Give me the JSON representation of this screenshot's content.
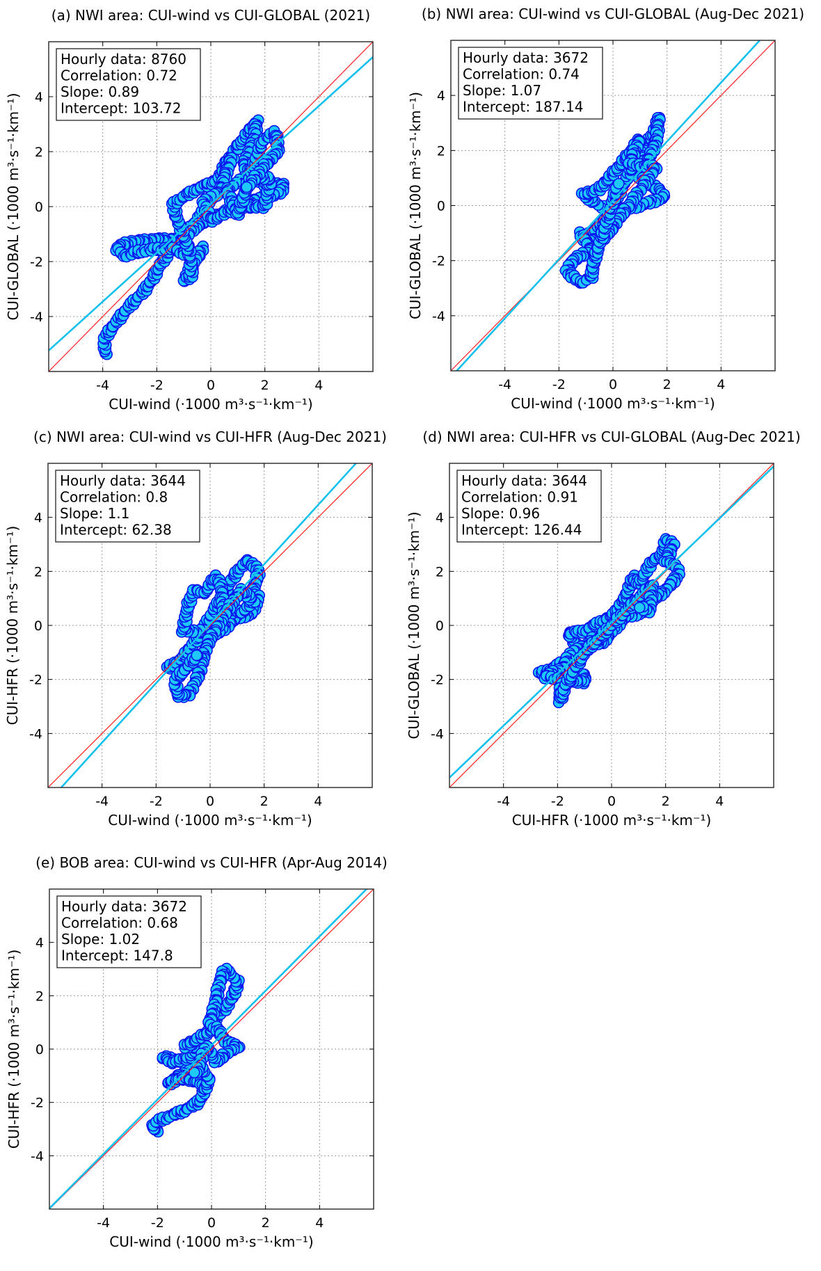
{
  "chart_data": [
    {
      "type": "scatter",
      "title": "(a) NWI area: CUI-wind vs CUI-GLOBAL (2021)",
      "xlabel": "CUI-wind (·1000 m³·s⁻¹·km⁻¹)",
      "ylabel": "CUI-GLOBAL (·1000 m³·s⁻¹·km⁻¹)",
      "xlim": [
        -6,
        6
      ],
      "ylim": [
        -6,
        6
      ],
      "xticks": [
        "-4",
        "-2",
        "0",
        "2",
        "4"
      ],
      "yticks": [
        "4",
        "2",
        "0",
        "-2",
        "-4"
      ],
      "grid": true,
      "stats": [
        "Hourly data: 8760",
        "Correlation: 0.72",
        "Slope: 0.89",
        "Intercept: 103.72"
      ],
      "regression": {
        "slope": 0.89,
        "intercept": 0.10372
      },
      "trajectory": [
        [
          -3.9,
          -5.4
        ],
        [
          -3.95,
          -4.8
        ],
        [
          -3.5,
          -4.2
        ],
        [
          -3,
          -3.6
        ],
        [
          -2.5,
          -3.1
        ],
        [
          -2.2,
          -2.7
        ],
        [
          -1.8,
          -2
        ],
        [
          -1.2,
          -1.2
        ],
        [
          -0.5,
          -0.5
        ],
        [
          0,
          0.3
        ],
        [
          0.5,
          1.5
        ],
        [
          1,
          2.2
        ],
        [
          1.7,
          3.1
        ],
        [
          1.6,
          2.4
        ],
        [
          1.2,
          1.5
        ],
        [
          2,
          0.8
        ],
        [
          2.7,
          0.8
        ],
        [
          2.6,
          0.5
        ],
        [
          1.5,
          0.2
        ],
        [
          0.5,
          -0.2
        ],
        [
          -0.5,
          -0.7
        ],
        [
          -1,
          -1.2
        ],
        [
          -2,
          -1.2
        ],
        [
          -3,
          -1.3
        ],
        [
          -3.5,
          -1.5
        ],
        [
          -3.2,
          -1.8
        ],
        [
          -2.5,
          -1.6
        ],
        [
          -1.5,
          -1.5
        ],
        [
          -0.7,
          -1.8
        ],
        [
          -0.3,
          -1.5
        ],
        [
          -1,
          -2.7
        ],
        [
          -0.7,
          -2.5
        ],
        [
          -0.8,
          -1.6
        ],
        [
          -1.3,
          -0.3
        ],
        [
          -1.4,
          0.1
        ],
        [
          -0.8,
          0.5
        ],
        [
          0.3,
          1.0
        ],
        [
          0.8,
          1.8
        ],
        [
          0.3,
          0.5
        ],
        [
          -0.3,
          0.2
        ],
        [
          0,
          -0.5
        ],
        [
          1,
          0
        ],
        [
          2,
          0
        ],
        [
          2.2,
          1.0
        ],
        [
          1.5,
          1.2
        ],
        [
          0.6,
          0.6
        ],
        [
          1,
          -0.3
        ],
        [
          1.9,
          2.4
        ],
        [
          2.4,
          2.7
        ],
        [
          2.5,
          2.0
        ],
        [
          2.0,
          1.5
        ],
        [
          1.3,
          0.6
        ]
      ]
    },
    {
      "type": "scatter",
      "title": "(b) NWI area: CUI-wind vs CUI-GLOBAL (Aug-Dec 2021)",
      "xlabel": "CUI-wind (·1000 m³·s⁻¹·km⁻¹)",
      "ylabel": "CUI-GLOBAL (·1000 m³·s⁻¹·km⁻¹)",
      "xlim": [
        -6,
        6
      ],
      "ylim": [
        -6,
        6
      ],
      "xticks": [
        "-4",
        "-2",
        "0",
        "2",
        "4"
      ],
      "yticks": [
        "4",
        "2",
        "0",
        "-2",
        "-4"
      ],
      "grid": true,
      "stats": [
        "Hourly data: 3672",
        "Correlation: 0.74",
        "Slope: 1.07",
        "Intercept: 187.14"
      ],
      "regression": {
        "slope": 1.07,
        "intercept": 0.18714
      },
      "trajectory": [
        [
          -1.2,
          -1.2
        ],
        [
          -0.5,
          -0.8
        ],
        [
          0,
          0
        ],
        [
          0.5,
          1
        ],
        [
          1,
          2
        ],
        [
          1.5,
          2.6
        ],
        [
          1.7,
          3.2
        ],
        [
          1.6,
          2.3
        ],
        [
          1.0,
          1.0
        ],
        [
          1.8,
          0.5
        ],
        [
          1.9,
          0.3
        ],
        [
          1.0,
          0
        ],
        [
          0,
          -0.2
        ],
        [
          -0.5,
          0
        ],
        [
          -1.1,
          0.4
        ],
        [
          -0.5,
          0.6
        ],
        [
          0.3,
          1.5
        ],
        [
          1.0,
          2.4
        ],
        [
          0.6,
          1.5
        ],
        [
          1.6,
          1.4
        ],
        [
          1.2,
          0.8
        ],
        [
          0.2,
          -0.5
        ],
        [
          -0.3,
          -1.2
        ],
        [
          -1.0,
          -1.3
        ],
        [
          -1.2,
          -1.0
        ],
        [
          -0.8,
          -1.6
        ],
        [
          -1.5,
          -2.0
        ],
        [
          -1.7,
          -2.4
        ],
        [
          -1.2,
          -2.8
        ],
        [
          -0.8,
          -2.6
        ],
        [
          -0.7,
          -2.0
        ],
        [
          -0.2,
          -0.5
        ],
        [
          0.2,
          0.8
        ]
      ]
    },
    {
      "type": "scatter",
      "title": "(c) NWI area: CUI-wind vs CUI-HFR (Aug-Dec 2021)",
      "xlabel": "CUI-wind (·1000 m³·s⁻¹·km⁻¹)",
      "ylabel": "CUI-HFR (·1000 m³·s⁻¹·km⁻¹)",
      "xlim": [
        -6,
        6
      ],
      "ylim": [
        -6,
        6
      ],
      "xticks": [
        "-4",
        "-2",
        "0",
        "2",
        "4"
      ],
      "yticks": [
        "4",
        "2",
        "0",
        "-2",
        "-4"
      ],
      "grid": true,
      "stats": [
        "Hourly data: 3644",
        "Correlation: 0.8",
        "Slope: 1.1",
        "Intercept: 62.38"
      ],
      "regression": {
        "slope": 1.1,
        "intercept": 0.06238
      },
      "trajectory": [
        [
          -1.6,
          -1.6
        ],
        [
          -1,
          -1.2
        ],
        [
          -0.5,
          -0.5
        ],
        [
          0,
          0.3
        ],
        [
          0.5,
          1.2
        ],
        [
          1,
          2
        ],
        [
          1.4,
          2.4
        ],
        [
          1.8,
          2.0
        ],
        [
          1.6,
          1.3
        ],
        [
          1.8,
          1.0
        ],
        [
          1.5,
          0.4
        ],
        [
          1,
          0.3
        ],
        [
          0.3,
          -0.3
        ],
        [
          -0.5,
          -0.2
        ],
        [
          -1,
          -0.2
        ],
        [
          -0.8,
          0.8
        ],
        [
          -0.6,
          1.3
        ],
        [
          -0.2,
          1.2
        ],
        [
          0.2,
          1.8
        ],
        [
          0.4,
          1.5
        ],
        [
          0.5,
          0.5
        ],
        [
          1.2,
          0.5
        ],
        [
          1.6,
          0.9
        ],
        [
          1.2,
          1.3
        ],
        [
          0.8,
          0.8
        ],
        [
          0,
          -0.5
        ],
        [
          -0.2,
          -1
        ],
        [
          -0.4,
          -1.8
        ],
        [
          -0.8,
          -2.6
        ],
        [
          -1.2,
          -2.6
        ],
        [
          -1.3,
          -2.0
        ],
        [
          -0.8,
          -1.5
        ],
        [
          -0.4,
          -1.0
        ]
      ]
    },
    {
      "type": "scatter",
      "title": "(d) NWI area: CUI-HFR vs CUI-GLOBAL (Aug-Dec 2021)",
      "xlabel": "CUI-HFR (·1000 m³·s⁻¹·km⁻¹)",
      "ylabel": "CUI-GLOBAL (·1000 m³·s⁻¹·km⁻¹)",
      "xlim": [
        -6,
        6
      ],
      "ylim": [
        -6,
        6
      ],
      "xticks": [
        "-4",
        "-2",
        "0",
        "2",
        "4"
      ],
      "yticks": [
        "4",
        "2",
        "0",
        "-2",
        "-4"
      ],
      "grid": true,
      "stats": [
        "Hourly data: 3644",
        "Correlation: 0.91",
        "Slope: 0.96",
        "Intercept: 126.44"
      ],
      "regression": {
        "slope": 0.96,
        "intercept": 0.12644
      },
      "trajectory": [
        [
          -2.7,
          -1.8
        ],
        [
          -2.2,
          -1.6
        ],
        [
          -1.5,
          -1.2
        ],
        [
          -1.2,
          -0.9
        ],
        [
          -1.6,
          -0.3
        ],
        [
          -1.0,
          -0.2
        ],
        [
          -0.3,
          0.2
        ],
        [
          0,
          0.3
        ],
        [
          0.5,
          1
        ],
        [
          0.8,
          1.8
        ],
        [
          1,
          1.5
        ],
        [
          1.5,
          2.4
        ],
        [
          1.9,
          2.6
        ],
        [
          2.0,
          3.2
        ],
        [
          2.3,
          3.0
        ],
        [
          2.0,
          2.4
        ],
        [
          2.4,
          2.2
        ],
        [
          2.5,
          1.9
        ],
        [
          2.0,
          1.3
        ],
        [
          1.6,
          1.0
        ],
        [
          1.2,
          0.5
        ],
        [
          0.5,
          0.3
        ],
        [
          -0.4,
          -0.7
        ],
        [
          -0.6,
          -0.4
        ],
        [
          -1.0,
          -0.8
        ],
        [
          -1.5,
          -1.0
        ],
        [
          -1.8,
          -1.6
        ],
        [
          -2.5,
          -1.9
        ],
        [
          -1.8,
          -2.0
        ],
        [
          -1.0,
          -1.8
        ],
        [
          -1.0,
          -2.1
        ],
        [
          -1.8,
          -2.0
        ],
        [
          -1.9,
          -2.5
        ],
        [
          -1.9,
          -2.8
        ],
        [
          -1.7,
          -2.2
        ],
        [
          -1,
          -1
        ],
        [
          0,
          0
        ],
        [
          1.5,
          1.5
        ],
        [
          1.4,
          0.5
        ],
        [
          1.0,
          0.7
        ]
      ]
    },
    {
      "type": "scatter",
      "title": "(e) BOB area: CUI-wind vs CUI-HFR (Apr-Aug 2014)",
      "xlabel": "CUI-wind (·1000 m³·s⁻¹·km⁻¹)",
      "ylabel": "CUI-HFR (·1000 m³·s⁻¹·km⁻¹)",
      "xlim": [
        -6,
        6
      ],
      "ylim": [
        -6,
        6
      ],
      "xticks": [
        "-4",
        "-2",
        "0",
        "2",
        "4"
      ],
      "yticks": [
        "4",
        "2",
        "0",
        "-2",
        "-4"
      ],
      "grid": true,
      "stats": [
        "Hourly data: 3672",
        "Correlation: 0.68",
        "Slope: 1.02",
        "Intercept: 147.8"
      ],
      "regression": {
        "slope": 1.02,
        "intercept": 0.1478
      },
      "trajectory": [
        [
          -2.0,
          -3.1
        ],
        [
          -2.2,
          -2.9
        ],
        [
          -2.0,
          -2.7
        ],
        [
          -1.5,
          -2.5
        ],
        [
          -1.0,
          -2.3
        ],
        [
          -0.5,
          -2.0
        ],
        [
          -0.3,
          -1.7
        ],
        [
          -0.3,
          -1.2
        ],
        [
          -0.8,
          -0.8
        ],
        [
          -1.2,
          -1.0
        ],
        [
          -1.6,
          -1.3
        ],
        [
          -1.2,
          -1.1
        ],
        [
          -0.5,
          -1.2
        ],
        [
          -0.2,
          -1.5
        ],
        [
          -0.1,
          -1.1
        ],
        [
          -0.5,
          -0.6
        ],
        [
          -1.8,
          -0.3
        ],
        [
          -1.5,
          -0.5
        ],
        [
          -0.8,
          -0.3
        ],
        [
          -0.5,
          0.1
        ],
        [
          -1.0,
          0.1
        ],
        [
          -0.5,
          0.4
        ],
        [
          0,
          0.7
        ],
        [
          0.1,
          1.1
        ],
        [
          0.5,
          1.5
        ],
        [
          0.8,
          2.0
        ],
        [
          1.0,
          2.5
        ],
        [
          0.7,
          2.8
        ],
        [
          0.5,
          3.0
        ],
        [
          0.3,
          2.5
        ],
        [
          0.1,
          1.5
        ],
        [
          -0.1,
          0.9
        ],
        [
          0.2,
          0.8
        ],
        [
          0.5,
          0.3
        ],
        [
          1.0,
          0.1
        ],
        [
          0.5,
          -0.2
        ],
        [
          0.2,
          -0.5
        ],
        [
          -0.2,
          0.1
        ],
        [
          -0.6,
          -1.0
        ]
      ]
    }
  ],
  "colors": {
    "marker_fill": "#1ec8f8",
    "marker_edge": "#0a14f0",
    "regression_line": "#10c0ee",
    "identity_line": "#ff2020",
    "grid": "#999999"
  }
}
